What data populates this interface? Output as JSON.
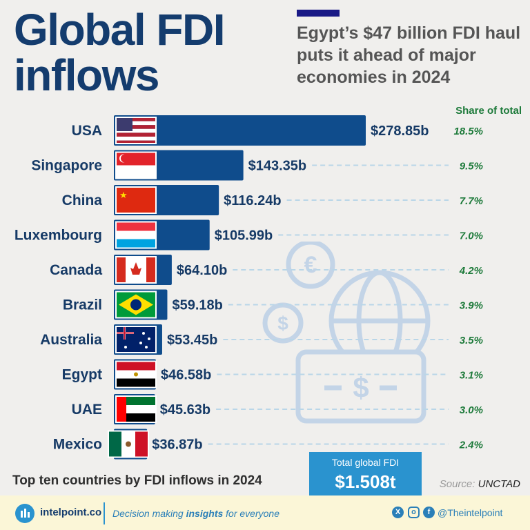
{
  "title": "Global FDI inflows",
  "subtitle": "Egypt’s $47 billion FDI haul puts it ahead of major economies in 2024",
  "share_header": "Share of total",
  "caption": "Top ten countries by FDI inflows in 2024",
  "total": {
    "label": "Total global FDI",
    "value": "$1.508t"
  },
  "source": {
    "label": "Source:",
    "value": "UNCTAD"
  },
  "footer": {
    "brand": "intelpoint.co",
    "tagline_before": "Decision making ",
    "tagline_bold": "insights",
    "tagline_after": " for everyone",
    "handle": "@Theintelpoint",
    "icons": [
      "x-icon",
      "instagram-icon",
      "facebook-icon"
    ]
  },
  "colors": {
    "bar": "#0f4c8c",
    "share": "#1d7a3a",
    "accent": "#2a93cf"
  },
  "chart_data": {
    "type": "bar",
    "orientation": "horizontal",
    "unit": "billion USD",
    "categories": [
      "USA",
      "Singapore",
      "China",
      "Luxembourg",
      "Canada",
      "Brazil",
      "Australia",
      "Egypt",
      "UAE",
      "Mexico"
    ],
    "values": [
      278.85,
      143.35,
      116.24,
      105.99,
      64.1,
      59.18,
      53.45,
      46.58,
      45.63,
      36.87
    ],
    "value_labels": [
      "$278.85b",
      "$143.35b",
      "$116.24b",
      "$105.99b",
      "$64.10b",
      "$59.18b",
      "$53.45b",
      "$46.58b",
      "$45.63b",
      "$36.87b"
    ],
    "share_labels": [
      "18.5%",
      "9.5%",
      "7.7%",
      "7.0%",
      "4.2%",
      "3.9%",
      "3.5%",
      "3.1%",
      "3.0%",
      "2.4%"
    ],
    "flags": [
      "usa-flag",
      "singapore-flag",
      "china-flag",
      "luxembourg-flag",
      "canada-flag",
      "brazil-flag",
      "australia-flag",
      "egypt-flag",
      "uae-flag",
      "mexico-flag"
    ]
  }
}
